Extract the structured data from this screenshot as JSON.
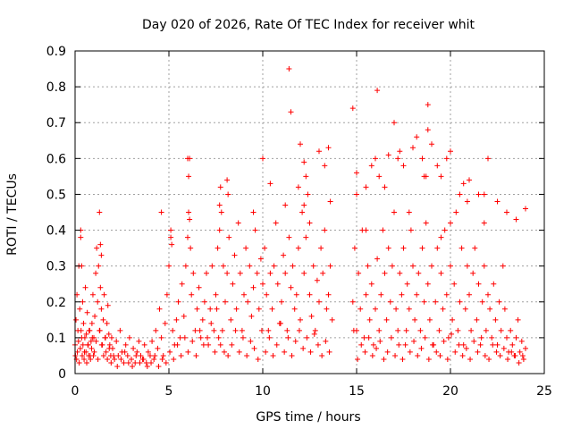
{
  "chart_data": {
    "type": "scatter",
    "title": "Day 020 of 2026, Rate Of TEC Index for receiver whit",
    "xlabel": "GPS time / hours",
    "ylabel": "ROTI / TECUs",
    "xlim": [
      0,
      25
    ],
    "ylim": [
      0,
      0.9
    ],
    "x_ticks": [
      0,
      5,
      10,
      15,
      20,
      25
    ],
    "x_tick_labels": [
      "0",
      "5",
      "10",
      "15",
      "20",
      "25"
    ],
    "y_ticks": [
      0,
      0.1,
      0.2,
      0.3,
      0.4,
      0.5,
      0.6,
      0.7,
      0.8,
      0.9
    ],
    "y_tick_labels": [
      "0",
      "0.1",
      "0.2",
      "0.3",
      "0.4",
      "0.5",
      "0.6",
      "0.7",
      "0.8",
      "0.9"
    ],
    "grid": true,
    "marker": "+",
    "color": "#ff0000",
    "series": [
      {
        "name": "ROTI",
        "x": [
          0.0,
          0.05,
          0.1,
          0.15,
          0.2,
          0.25,
          0.3,
          0.35,
          0.4,
          0.45,
          0.5,
          0.55,
          0.6,
          0.65,
          0.7,
          0.75,
          0.8,
          0.85,
          0.9,
          0.95,
          1.0,
          1.05,
          1.1,
          1.15,
          1.2,
          1.25,
          1.3,
          1.35,
          1.4,
          1.45,
          1.5,
          1.55,
          1.6,
          1.65,
          1.7,
          1.75,
          1.8,
          1.85,
          1.9,
          1.95,
          2.0,
          2.1,
          2.2,
          2.3,
          2.4,
          2.5,
          2.6,
          2.7,
          2.8,
          2.9,
          3.0,
          3.1,
          3.2,
          3.3,
          3.4,
          3.5,
          3.6,
          3.7,
          3.8,
          3.9,
          4.0,
          4.1,
          4.2,
          4.3,
          4.4,
          4.5,
          4.6,
          4.7,
          4.8,
          4.9,
          5.0,
          5.1,
          5.2,
          5.3,
          5.4,
          5.5,
          5.6,
          5.7,
          5.8,
          5.9,
          6.0,
          6.05,
          6.1,
          6.15,
          6.2,
          6.3,
          6.4,
          6.5,
          6.6,
          6.7,
          6.8,
          6.9,
          7.0,
          7.1,
          7.2,
          7.3,
          7.4,
          7.5,
          7.6,
          7.7,
          7.8,
          7.9,
          8.0,
          8.1,
          8.2,
          8.3,
          8.4,
          8.5,
          8.6,
          8.7,
          8.8,
          8.9,
          9.0,
          9.1,
          9.2,
          9.3,
          9.4,
          9.5,
          9.6,
          9.7,
          9.8,
          9.9,
          10.0,
          10.1,
          10.2,
          10.3,
          10.4,
          10.5,
          10.6,
          10.7,
          10.8,
          10.9,
          11.0,
          11.1,
          11.2,
          11.3,
          11.4,
          11.5,
          11.6,
          11.7,
          11.8,
          11.9,
          12.0,
          12.1,
          12.2,
          12.3,
          12.4,
          12.5,
          12.6,
          12.7,
          12.8,
          12.9,
          13.0,
          13.1,
          13.2,
          13.3,
          13.4,
          13.5,
          13.6,
          13.7,
          14.8,
          14.9,
          15.0,
          15.1,
          15.2,
          15.3,
          15.4,
          15.5,
          15.6,
          15.7,
          15.8,
          15.9,
          16.0,
          16.1,
          16.2,
          16.3,
          16.4,
          16.5,
          16.6,
          16.7,
          16.8,
          16.9,
          17.0,
          17.1,
          17.2,
          17.3,
          17.4,
          17.5,
          17.6,
          17.7,
          17.8,
          17.9,
          18.0,
          18.1,
          18.2,
          18.3,
          18.4,
          18.5,
          18.6,
          18.7,
          18.8,
          18.9,
          19.0,
          19.1,
          19.2,
          19.3,
          19.4,
          19.5,
          19.6,
          19.7,
          19.8,
          19.9,
          20.0,
          20.1,
          20.2,
          20.3,
          20.4,
          20.5,
          20.6,
          20.7,
          20.8,
          20.9,
          21.0,
          21.1,
          21.2,
          21.3,
          21.4,
          21.5,
          21.6,
          21.7,
          21.8,
          21.9,
          22.0,
          22.1,
          22.2,
          22.3,
          22.4,
          22.5,
          22.6,
          22.7,
          22.8,
          22.9,
          23.0,
          23.1,
          23.2,
          23.3,
          23.4,
          23.5,
          23.6,
          23.7,
          23.8,
          23.9,
          24.0,
          0.02,
          0.08,
          0.12,
          0.18,
          0.22,
          0.28,
          0.32,
          0.38,
          0.42,
          0.48,
          0.52,
          0.58,
          0.62,
          0.68,
          0.72,
          0.78,
          0.82,
          0.88,
          0.92,
          0.98,
          1.02,
          1.12,
          1.22,
          1.32,
          1.42,
          1.52,
          1.62,
          1.72,
          1.82,
          1.92,
          2.05,
          2.25,
          2.45,
          2.65,
          2.85,
          3.05,
          3.25,
          3.45,
          3.65,
          3.85,
          4.05,
          4.25,
          4.45,
          4.65,
          4.85,
          5.05,
          5.25,
          5.45,
          5.65,
          5.85,
          6.02,
          6.25,
          6.45,
          6.65,
          6.85,
          7.05,
          7.25,
          7.45,
          7.55,
          7.65,
          7.75,
          7.85,
          7.95,
          8.15,
          8.35,
          8.55,
          8.75,
          8.95,
          9.15,
          9.35,
          9.55,
          9.75,
          9.95,
          10.15,
          10.35,
          10.55,
          10.75,
          10.95,
          11.15,
          11.35,
          11.55,
          11.75,
          11.95,
          12.15,
          12.35,
          12.55,
          12.75,
          12.95,
          13.15,
          13.35,
          13.55,
          14.85,
          15.05,
          15.25,
          15.45,
          15.65,
          15.85,
          16.05,
          16.25,
          16.45,
          16.65,
          16.85,
          17.05,
          17.25,
          17.45,
          17.65,
          17.85,
          18.05,
          18.25,
          18.45,
          18.65,
          18.85,
          19.05,
          19.25,
          19.45,
          19.65,
          19.85,
          20.05,
          20.25,
          20.45,
          20.65,
          20.85,
          21.05,
          21.25,
          21.45,
          21.65,
          21.85,
          22.05,
          22.25,
          22.45,
          22.65,
          22.85,
          23.05,
          23.25,
          23.45,
          23.65,
          23.85,
          0.3,
          0.35,
          1.3,
          1.35,
          1.4,
          4.6,
          5.1,
          5.15,
          6.0,
          6.05,
          6.1,
          7.7,
          7.75,
          8.1,
          8.15,
          9.5,
          10.0,
          10.4,
          11.2,
          11.5,
          12.0,
          12.2,
          12.3,
          13.0,
          13.3,
          13.5,
          14.8,
          15.0,
          15.5,
          15.8,
          16.0,
          16.2,
          16.5,
          16.7,
          17.0,
          17.2,
          17.5,
          18.0,
          18.2,
          18.5,
          18.6,
          18.8,
          19.0,
          19.5,
          19.8,
          20.0,
          20.5,
          20.7,
          21.0,
          21.5,
          21.8,
          22.0,
          22.5,
          23.0,
          23.5,
          24.0,
          11.4,
          11.9,
          12.2,
          15.0,
          16.1,
          17.3,
          18.8,
          19.3,
          20.0,
          21.8,
          18.7,
          12.5,
          13.6,
          15.5,
          17.8,
          20.9,
          19.5
        ],
        "y": [
          0.08,
          0.15,
          0.22,
          0.12,
          0.3,
          0.18,
          0.38,
          0.1,
          0.2,
          0.14,
          0.06,
          0.24,
          0.11,
          0.17,
          0.08,
          0.12,
          0.05,
          0.09,
          0.14,
          0.22,
          0.1,
          0.16,
          0.28,
          0.35,
          0.2,
          0.3,
          0.12,
          0.24,
          0.18,
          0.08,
          0.15,
          0.22,
          0.1,
          0.06,
          0.14,
          0.19,
          0.11,
          0.08,
          0.05,
          0.1,
          0.07,
          0.04,
          0.09,
          0.05,
          0.12,
          0.06,
          0.03,
          0.08,
          0.05,
          0.1,
          0.04,
          0.07,
          0.03,
          0.06,
          0.09,
          0.05,
          0.04,
          0.08,
          0.03,
          0.06,
          0.05,
          0.09,
          0.04,
          0.12,
          0.07,
          0.18,
          0.1,
          0.05,
          0.14,
          0.22,
          0.3,
          0.38,
          0.12,
          0.08,
          0.15,
          0.2,
          0.1,
          0.25,
          0.16,
          0.3,
          0.38,
          0.45,
          0.6,
          0.35,
          0.22,
          0.28,
          0.12,
          0.18,
          0.24,
          0.1,
          0.15,
          0.2,
          0.28,
          0.08,
          0.18,
          0.3,
          0.12,
          0.22,
          0.35,
          0.4,
          0.45,
          0.3,
          0.2,
          0.28,
          0.38,
          0.15,
          0.25,
          0.33,
          0.18,
          0.42,
          0.28,
          0.12,
          0.22,
          0.35,
          0.2,
          0.3,
          0.16,
          0.24,
          0.4,
          0.28,
          0.18,
          0.32,
          0.25,
          0.35,
          0.22,
          0.12,
          0.28,
          0.18,
          0.3,
          0.42,
          0.25,
          0.14,
          0.2,
          0.33,
          0.28,
          0.12,
          0.38,
          0.24,
          0.3,
          0.18,
          0.22,
          0.35,
          0.15,
          0.45,
          0.28,
          0.38,
          0.5,
          0.22,
          0.16,
          0.3,
          0.12,
          0.26,
          0.2,
          0.35,
          0.28,
          0.4,
          0.18,
          0.22,
          0.3,
          0.15,
          0.2,
          0.35,
          0.12,
          0.28,
          0.18,
          0.4,
          0.1,
          0.22,
          0.3,
          0.15,
          0.25,
          0.08,
          0.18,
          0.32,
          0.12,
          0.22,
          0.4,
          0.28,
          0.15,
          0.35,
          0.2,
          0.3,
          0.45,
          0.18,
          0.12,
          0.28,
          0.22,
          0.35,
          0.08,
          0.25,
          0.18,
          0.4,
          0.3,
          0.15,
          0.22,
          0.28,
          0.12,
          0.35,
          0.2,
          0.42,
          0.25,
          0.15,
          0.3,
          0.08,
          0.2,
          0.35,
          0.12,
          0.28,
          0.18,
          0.4,
          0.22,
          0.1,
          0.3,
          0.15,
          0.25,
          0.45,
          0.12,
          0.2,
          0.35,
          0.08,
          0.18,
          0.3,
          0.22,
          0.12,
          0.28,
          0.35,
          0.15,
          0.25,
          0.08,
          0.2,
          0.3,
          0.12,
          0.22,
          0.18,
          0.1,
          0.25,
          0.15,
          0.08,
          0.2,
          0.12,
          0.3,
          0.18,
          0.1,
          0.06,
          0.12,
          0.08,
          0.05,
          0.1,
          0.15,
          0.06,
          0.09,
          0.04,
          0.07,
          0.05,
          0.04,
          0.06,
          0.09,
          0.03,
          0.07,
          0.12,
          0.05,
          0.08,
          0.04,
          0.1,
          0.06,
          0.03,
          0.08,
          0.05,
          0.12,
          0.04,
          0.07,
          0.1,
          0.05,
          0.06,
          0.09,
          0.04,
          0.12,
          0.08,
          0.05,
          0.1,
          0.04,
          0.07,
          0.03,
          0.05,
          0.02,
          0.04,
          0.06,
          0.03,
          0.02,
          0.05,
          0.03,
          0.04,
          0.02,
          0.03,
          0.05,
          0.02,
          0.04,
          0.03,
          0.06,
          0.04,
          0.08,
          0.05,
          0.1,
          0.06,
          0.09,
          0.05,
          0.12,
          0.08,
          0.1,
          0.14,
          0.06,
          0.18,
          0.1,
          0.08,
          0.12,
          0.06,
          0.05,
          0.08,
          0.12,
          0.06,
          0.1,
          0.05,
          0.09,
          0.07,
          0.04,
          0.12,
          0.06,
          0.1,
          0.05,
          0.08,
          0.14,
          0.06,
          0.1,
          0.05,
          0.09,
          0.12,
          0.07,
          0.1,
          0.06,
          0.11,
          0.08,
          0.05,
          0.09,
          0.06,
          0.12,
          0.04,
          0.08,
          0.06,
          0.1,
          0.05,
          0.07,
          0.09,
          0.04,
          0.06,
          0.1,
          0.05,
          0.08,
          0.04,
          0.12,
          0.06,
          0.09,
          0.05,
          0.07,
          0.1,
          0.04,
          0.08,
          0.06,
          0.05,
          0.09,
          0.04,
          0.11,
          0.06,
          0.08,
          0.05,
          0.07,
          0.04,
          0.09,
          0.06,
          0.1,
          0.05,
          0.04,
          0.08,
          0.06,
          0.05,
          0.07,
          0.04,
          0.06,
          0.05,
          0.03,
          0.05,
          0.4,
          0.3,
          0.45,
          0.36,
          0.33,
          0.45,
          0.4,
          0.36,
          0.6,
          0.55,
          0.43,
          0.47,
          0.52,
          0.54,
          0.5,
          0.45,
          0.6,
          0.53,
          0.47,
          0.73,
          0.64,
          0.59,
          0.55,
          0.62,
          0.58,
          0.63,
          0.74,
          0.5,
          0.52,
          0.58,
          0.6,
          0.55,
          0.52,
          0.61,
          0.7,
          0.6,
          0.58,
          0.63,
          0.66,
          0.6,
          0.55,
          0.68,
          0.64,
          0.55,
          0.6,
          0.62,
          0.5,
          0.53,
          0.54,
          0.5,
          0.42,
          0.6,
          0.48,
          0.45,
          0.43,
          0.46,
          0.85,
          0.52,
          0.47,
          0.56,
          0.79,
          0.62,
          0.75,
          0.58,
          0.42,
          0.5,
          0.55,
          0.42,
          0.48,
          0.4,
          0.45,
          0.48,
          0.38
        ]
      }
    ]
  }
}
